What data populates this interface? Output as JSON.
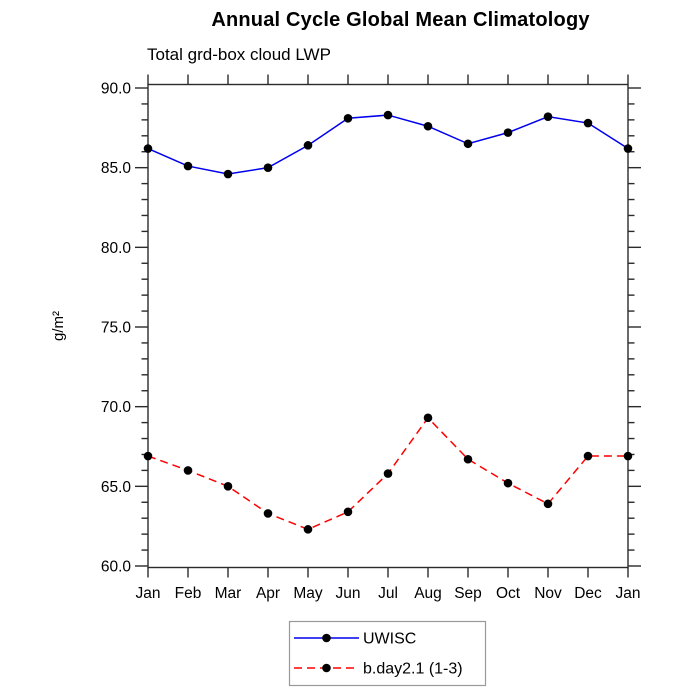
{
  "chart_data": {
    "type": "line",
    "title": "Annual Cycle Global Mean Climatology",
    "subtitle": "Total grd-box cloud LWP",
    "ylabel": "g/m²",
    "xlabel": "",
    "categories": [
      "Jan",
      "Feb",
      "Mar",
      "Apr",
      "May",
      "Jun",
      "Jul",
      "Aug",
      "Sep",
      "Oct",
      "Nov",
      "Dec",
      "Jan"
    ],
    "ylim": [
      60.0,
      90.0
    ],
    "y_major_ticks": [
      60,
      65,
      70,
      75,
      80,
      85,
      90
    ],
    "y_major_tick_labels": [
      "60.0",
      "65.0",
      "70.0",
      "75.0",
      "80.0",
      "85.0",
      "90.0"
    ],
    "y_minor_tick_interval": 1,
    "grid": false,
    "legend_position": "bottom-center",
    "axis_color": "#2b2b2b",
    "legend_border_color": "#999999",
    "marker": "filled-circle",
    "marker_color": "#000000",
    "series": [
      {
        "name": "UWISC",
        "color": "#0000ee",
        "line_style": "solid",
        "values": [
          86.2,
          85.1,
          84.6,
          85.0,
          86.4,
          88.1,
          88.3,
          87.6,
          86.5,
          87.2,
          88.2,
          87.8,
          86.2
        ]
      },
      {
        "name": "b.day2.1 (1-3)",
        "color": "#ff0000",
        "line_style": "dashed",
        "values": [
          66.9,
          66.0,
          65.0,
          63.3,
          62.3,
          63.4,
          65.8,
          69.3,
          66.7,
          65.2,
          63.9,
          66.9,
          66.9
        ]
      }
    ]
  }
}
